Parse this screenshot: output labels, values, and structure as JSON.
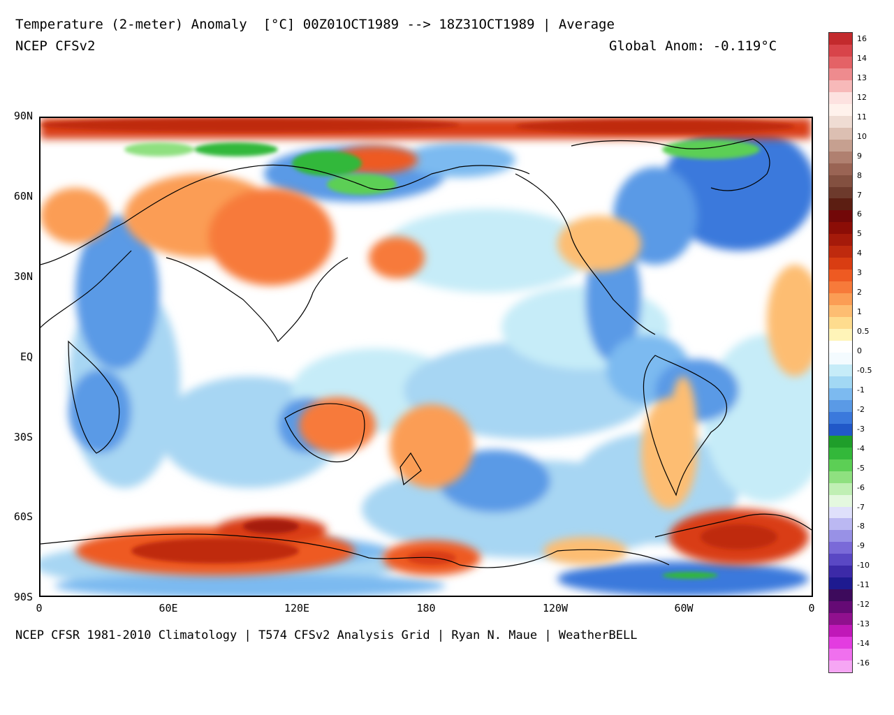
{
  "header": {
    "title": "Temperature (2-meter) Anomaly  [°C] 00Z01OCT1989 --> 18Z31OCT1989 | Average",
    "subtitle": "NCEP CFSv2",
    "global_anom": "Global Anom: -0.119°C"
  },
  "footer": "NCEP CFSR 1981-2010 Climatology | T574 CFSv2 Analysis Grid | Ryan N. Maue | WeatherBELL",
  "map": {
    "lat_labels": [
      "90N",
      "60N",
      "30N",
      "EQ",
      "30S",
      "60S",
      "90S"
    ],
    "lon_labels": [
      "0",
      "60E",
      "120E",
      "180",
      "120W",
      "60W",
      "0"
    ]
  },
  "colorbar": {
    "labels": [
      "16",
      "14",
      "13",
      "12",
      "11",
      "10",
      "9",
      "8",
      "7",
      "6",
      "5",
      "4",
      "3",
      "2",
      "1",
      "0.5",
      "0",
      "-0.5",
      "-1",
      "-2",
      "-3",
      "-4",
      "-5",
      "-6",
      "-7",
      "-8",
      "-9",
      "-10",
      "-11",
      "-12",
      "-13",
      "-14",
      "-16"
    ],
    "colors": [
      "#c32a2d",
      "#d8444a",
      "#e46266",
      "#ee8b8e",
      "#f7b9b9",
      "#fde2e0",
      "#fff2ec",
      "#efdcd3",
      "#dcbfb2",
      "#c6a090",
      "#b08070",
      "#9a6454",
      "#835040",
      "#6d3a2c",
      "#5c1e12",
      "#720808",
      "#8b0d06",
      "#a51a0a",
      "#bf2a0e",
      "#d93d12",
      "#ee5a22",
      "#f77a3a",
      "#fb9d55",
      "#fdbd72",
      "#fedc8e",
      "#fff4b8",
      "#ffffff",
      "#f4fbff",
      "#c6ecf8",
      "#a2d8f4",
      "#7cbaf0",
      "#5a9ae6",
      "#3b79dc",
      "#2158c8",
      "#1f9e2a",
      "#33b83a",
      "#5ccf55",
      "#8fe080",
      "#c0efb4",
      "#e4f8df",
      "#dfe0fb",
      "#bbb8f2",
      "#9891e6",
      "#7a6ad8",
      "#5a48c4",
      "#3c2aa8",
      "#1e1a90",
      "#3d0a5c",
      "#650a75",
      "#90108e",
      "#c018b8",
      "#e33ce0",
      "#f070ee",
      "#f6a6f4"
    ]
  }
}
